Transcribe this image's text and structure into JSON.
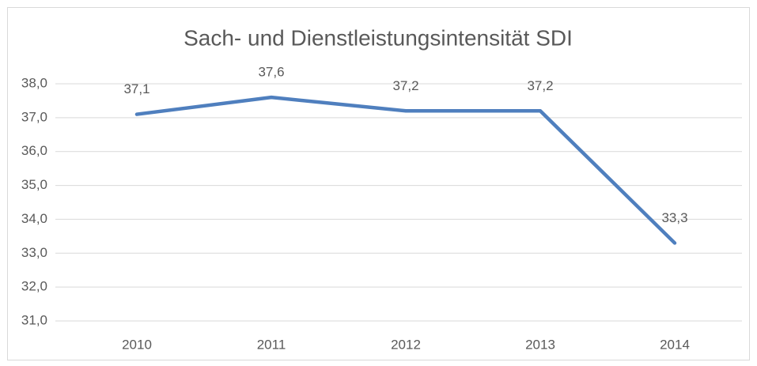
{
  "chart_data": {
    "type": "line",
    "title": "Sach- und Dienstleistungsintensität SDI",
    "categories": [
      "2010",
      "2011",
      "2012",
      "2013",
      "2014"
    ],
    "values": [
      37.1,
      37.6,
      37.2,
      37.2,
      33.3
    ],
    "value_labels": [
      "37,1",
      "37,6",
      "37,2",
      "37,2",
      "33,3"
    ],
    "color": "#4f7fbe",
    "ylim": [
      31,
      38
    ],
    "yticks": [
      {
        "value": 31,
        "label": "31,0"
      },
      {
        "value": 32,
        "label": "32,0"
      },
      {
        "value": 33,
        "label": "33,0"
      },
      {
        "value": 34,
        "label": "34,0"
      },
      {
        "value": 35,
        "label": "35,0"
      },
      {
        "value": 36,
        "label": "36,0"
      },
      {
        "value": 37,
        "label": "37,0"
      },
      {
        "value": 38,
        "label": "38,0"
      }
    ],
    "grid": true
  }
}
